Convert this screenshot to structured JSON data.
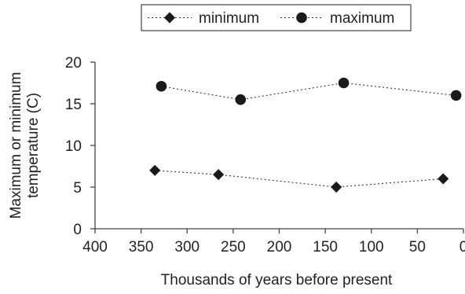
{
  "chart_data": {
    "type": "line",
    "title": "",
    "xlabel": "Thousands of  years before present",
    "ylabel_lines": [
      "Maximum or minimum",
      "temperature (C)"
    ],
    "xlim": [
      400,
      0
    ],
    "ylim": [
      0,
      20
    ],
    "x_ticks": [
      400,
      350,
      300,
      250,
      200,
      150,
      100,
      50,
      0
    ],
    "y_ticks": [
      0,
      5,
      10,
      15,
      20
    ],
    "grid": false,
    "legend_position": "top-center",
    "series": [
      {
        "name": "minimum",
        "marker": "diamond",
        "line_style": "dotted",
        "color": "#1a1a1a",
        "x": [
          335,
          266,
          138,
          22
        ],
        "y": [
          7.0,
          6.5,
          5.0,
          6.0
        ]
      },
      {
        "name": "maximum",
        "marker": "circle",
        "line_style": "dotted",
        "color": "#1a1a1a",
        "x": [
          328,
          242,
          130,
          8
        ],
        "y": [
          17.1,
          15.5,
          17.5,
          16.0
        ]
      }
    ]
  }
}
